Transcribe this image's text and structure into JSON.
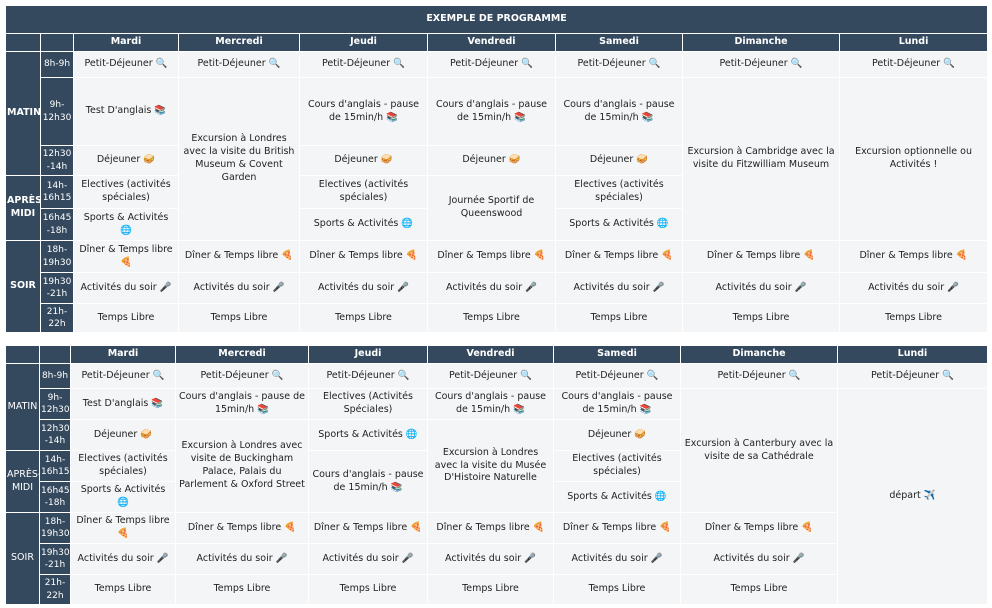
{
  "tables": [
    {
      "title": "EXEMPLE DE PROGRAMME",
      "days": [
        "Mardi",
        "Mercredi",
        "Jeudi",
        "Vendredi",
        "Samedi",
        "Dimanche",
        "Lundi"
      ],
      "periods": [
        "MATIN",
        "APRÈS-MIDI",
        "SOIR"
      ],
      "times": [
        "8h-9h",
        "9h-12h30",
        "12h30 -14h",
        "14h-16h15",
        "16h45 -18h",
        "18h-19h30",
        "19h30 -21h",
        "21h-22h"
      ],
      "rows": [
        [
          "Petit-Déjeuner 🔍",
          "Petit-Déjeuner 🔍",
          "Petit-Déjeuner 🔍",
          "Petit-Déjeuner 🔍",
          "Petit-Déjeuner 🔍",
          "Petit-Déjeuner 🔍",
          "Petit-Déjeuner 🔍"
        ],
        [
          "Test D'anglais 📚",
          "Excursion à Londres avec la visite du British Museum & Covent Garden",
          "Cours d'anglais - pause de 15min/h 📚",
          "Cours d'anglais - pause de 15min/h 📚",
          "Cours d'anglais - pause de 15min/h 📚",
          "Excursion à Cambridge avec la visite du Fitzwilliam Museum",
          "Excursion optionnelle ou Activités !"
        ],
        [
          "Déjeuner 🥪",
          "Déjeuner 🥪",
          "Déjeuner 🥪",
          "Déjeuner 🥪"
        ],
        [
          "Electives (activités spéciales)",
          "Electives (activités spéciales)",
          "Journée Sportif de Queenswood",
          "Electives (activités spéciales)"
        ],
        [
          "Sports & Activités 🌐",
          "Sports & Activités 🌐",
          "Sports & Activités 🌐"
        ],
        [
          "Dîner & Temps libre 🍕",
          "Dîner & Temps libre 🍕",
          "Dîner & Temps libre 🍕",
          "Dîner & Temps libre 🍕",
          "Dîner & Temps libre 🍕",
          "Dîner & Temps libre 🍕",
          "Dîner & Temps libre 🍕"
        ],
        [
          "Activités du soir 🎤",
          "Activités du soir 🎤",
          "Activités du soir 🎤",
          "Activités du soir 🎤",
          "Activités du soir 🎤",
          "Activités du soir 🎤",
          "Activités du soir 🎤"
        ],
        [
          "Temps Libre",
          "Temps Libre",
          "Temps Libre",
          "Temps Libre",
          "Temps Libre",
          "Temps Libre",
          "Temps Libre"
        ]
      ]
    },
    {
      "days": [
        "Mardi",
        "Mercredi",
        "Jeudi",
        "Vendredi",
        "Samedi",
        "Dimanche",
        "Lundi"
      ],
      "periods": [
        "MATIN",
        "APRÈS-MIDI",
        "SOIR"
      ],
      "times": [
        "8h-9h",
        "9h-12h30",
        "12h30 -14h",
        "14h-16h15",
        "16h45 -18h",
        "18h-19h30",
        "19h30 -21h",
        "21h-22h"
      ],
      "rows": [
        [
          "Petit-Déjeuner 🔍",
          "Petit-Déjeuner 🔍",
          "Petit-Déjeuner 🔍",
          "Petit-Déjeuner 🔍",
          "Petit-Déjeuner 🔍",
          "Petit-Déjeuner 🔍",
          "Petit-Déjeuner 🔍"
        ],
        [
          "Test D'anglais 📚",
          "Cours d'anglais - pause de 15min/h 📚",
          "Electives (Activités Spéciales)",
          "Cours d'anglais - pause de 15min/h 📚",
          "Cours d'anglais - pause de 15min/h 📚",
          "Excursion à Canterbury avec la visite de sa Cathédrale",
          "départ ✈️"
        ],
        [
          "Déjeuner 🥪",
          "Excursion à Londres avec visite de Buckingham Palace, Palais du Parlement & Oxford Street",
          "Sports & Activités 🌐",
          "Excursion à Londres avec la visite du Musée D'Histoire Naturelle",
          "Déjeuner 🥪"
        ],
        [
          "Electives (activités spéciales)",
          "Cours d'anglais - pause de 15min/h 📚",
          "Electives (activités spéciales)"
        ],
        [
          "Sports & Activités 🌐",
          "Sports & Activités 🌐"
        ],
        [
          "Dîner & Temps libre 🍕",
          "Dîner & Temps libre 🍕",
          "Dîner & Temps libre 🍕",
          "Dîner & Temps libre 🍕",
          "Dîner & Temps libre 🍕",
          "Dîner & Temps libre 🍕"
        ],
        [
          "Activités du soir 🎤",
          "Activités du soir 🎤",
          "Activités du soir 🎤",
          "Activités du soir 🎤",
          "Activités du soir 🎤",
          "Activités du soir 🎤"
        ],
        [
          "Temps Libre",
          "Temps Libre",
          "Temps Libre",
          "Temps Libre",
          "Temps Libre",
          "Temps Libre"
        ]
      ]
    }
  ]
}
